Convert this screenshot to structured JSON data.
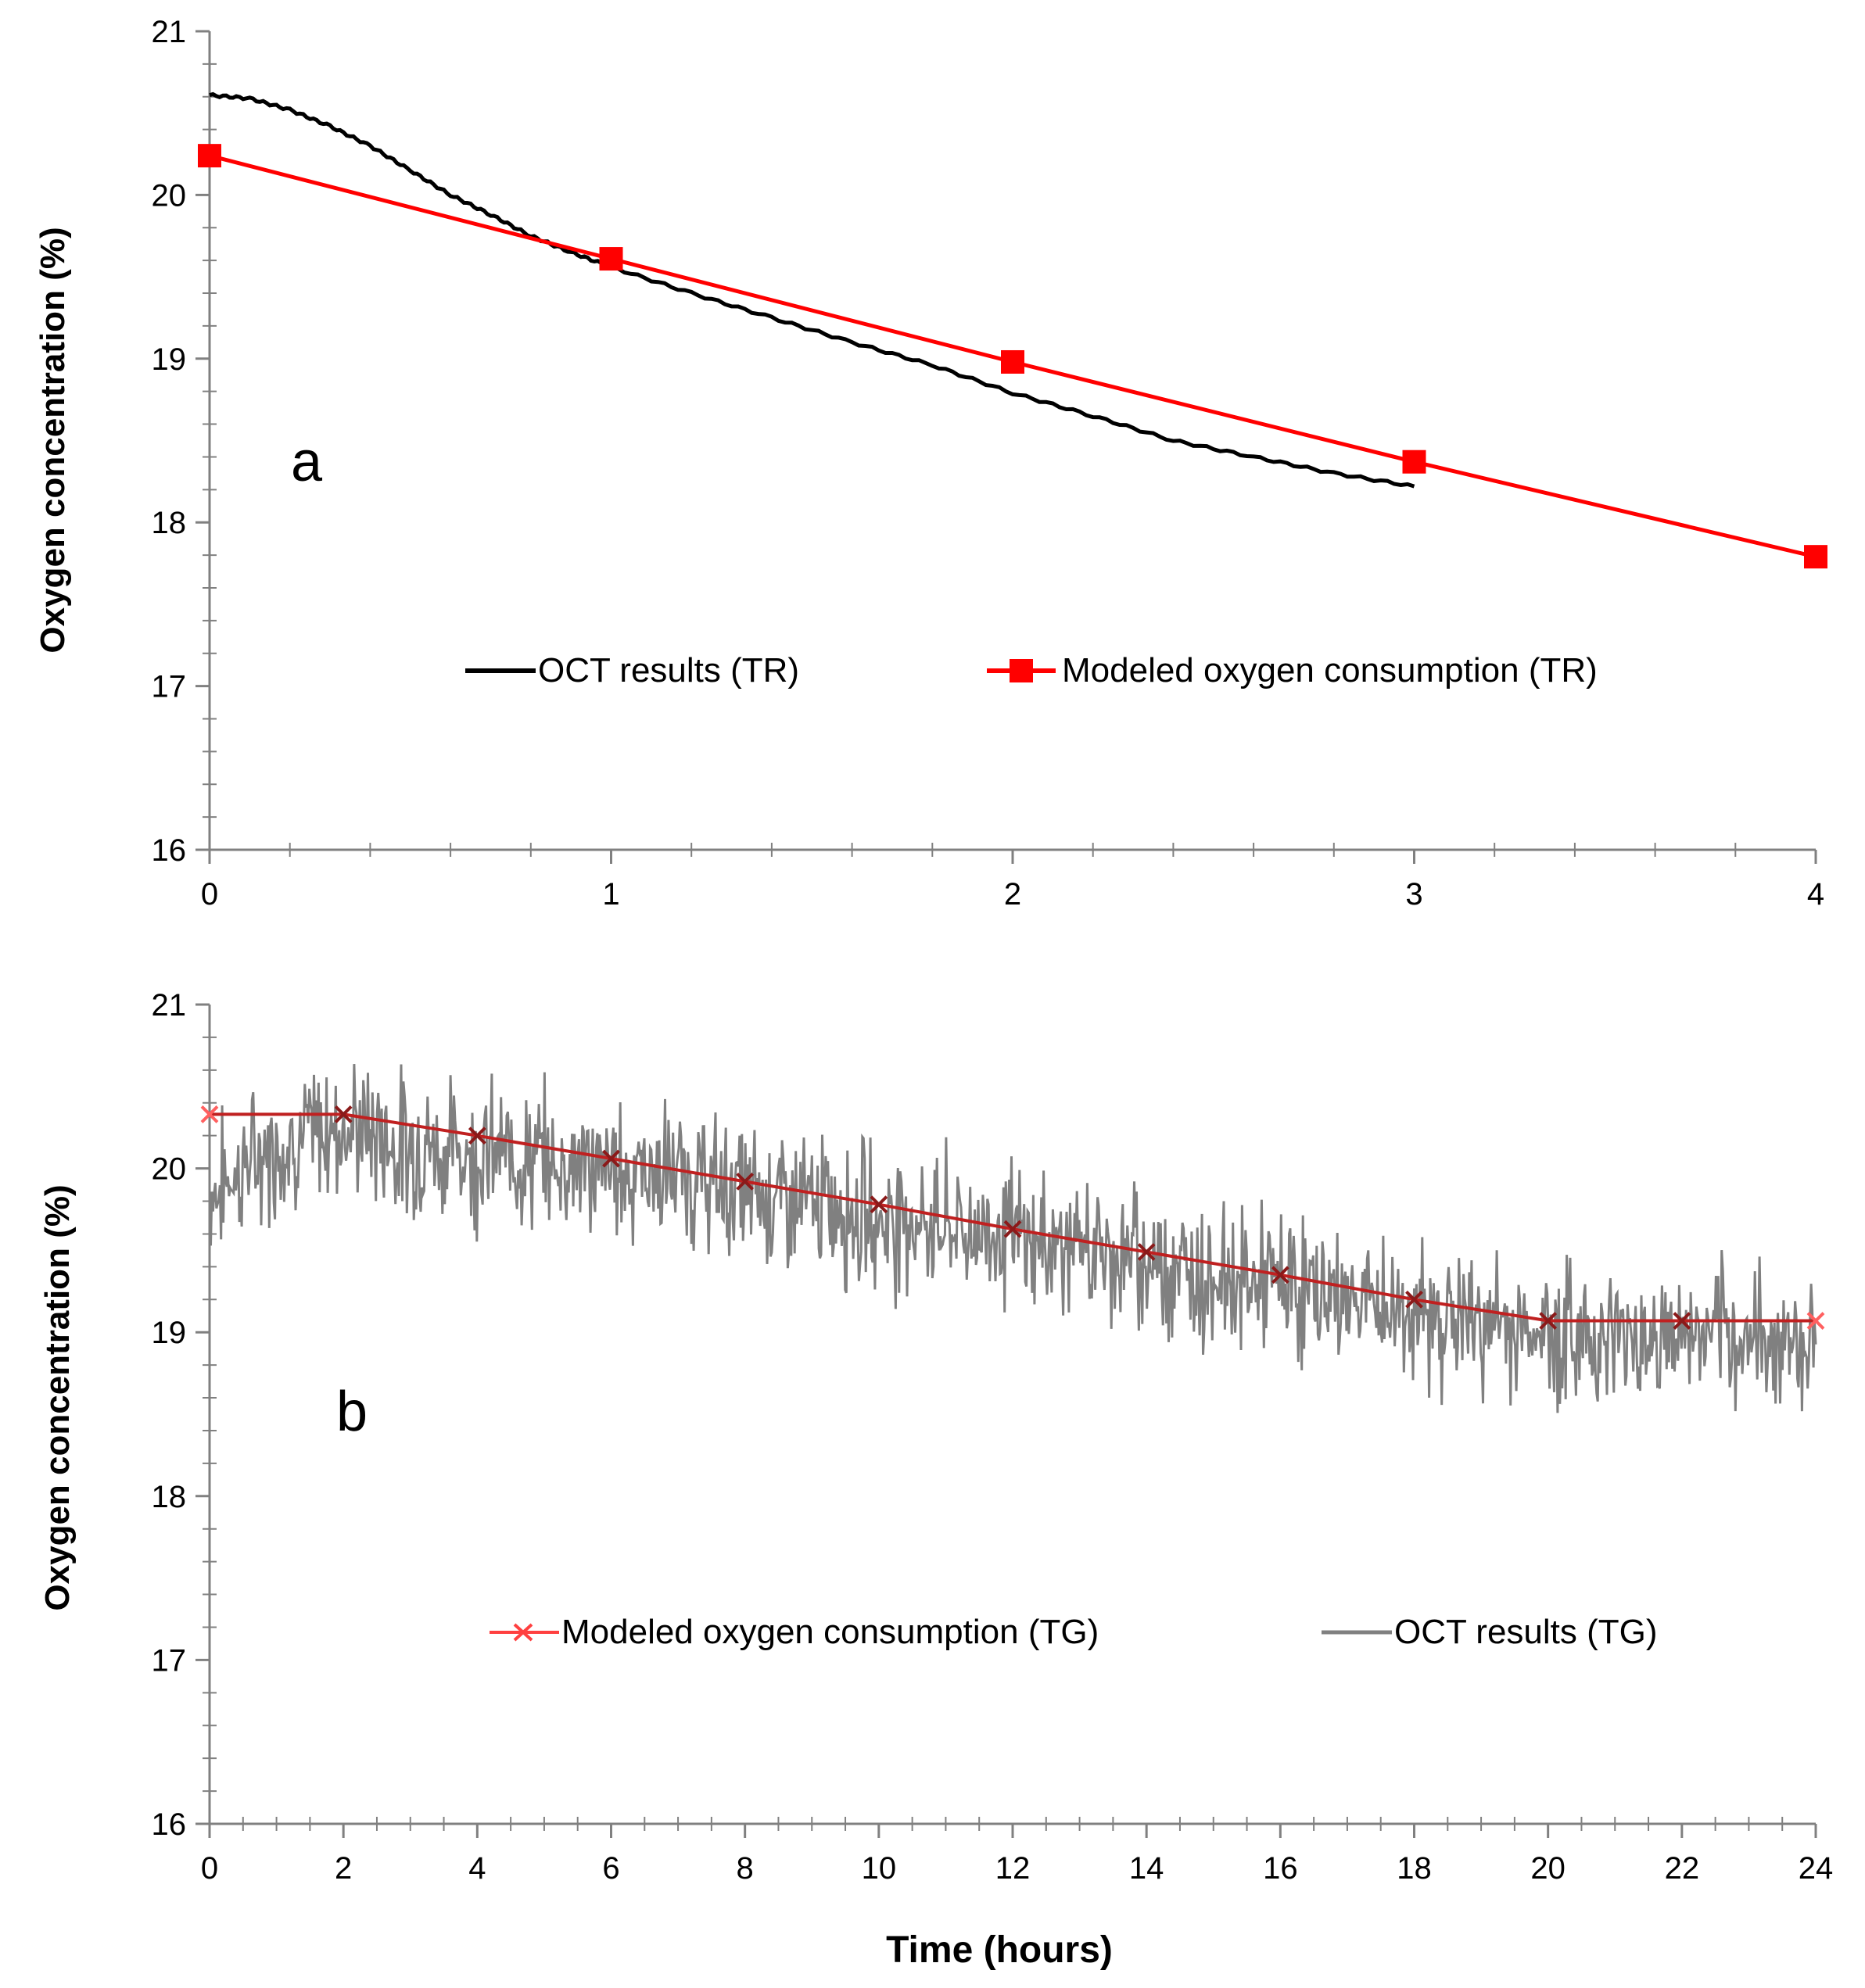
{
  "chart_data": [
    {
      "type": "line",
      "panel_label": "a",
      "title": "",
      "xlabel": "",
      "ylabel": "Oxygen concentration  (%)",
      "xlim": [
        0,
        4
      ],
      "ylim": [
        16,
        21
      ],
      "x_ticks": [
        "0",
        "1",
        "2",
        "3",
        "4"
      ],
      "y_ticks": [
        "16",
        "17",
        "18",
        "19",
        "20",
        "21"
      ],
      "legend_position": "middle",
      "series": [
        {
          "name": "OCT results (TR)",
          "color": "#000000",
          "marker": "none",
          "x": [
            0,
            0.1,
            0.2,
            0.3,
            0.4,
            0.5,
            0.6,
            0.7,
            0.8,
            0.9,
            1.0,
            1.2,
            1.4,
            1.6,
            1.8,
            2.0,
            2.2,
            2.4,
            2.6,
            2.8,
            3.0
          ],
          "y": [
            20.61,
            20.59,
            20.52,
            20.42,
            20.3,
            20.15,
            20.0,
            19.88,
            19.75,
            19.65,
            19.56,
            19.4,
            19.25,
            19.1,
            18.96,
            18.79,
            18.65,
            18.5,
            18.4,
            18.3,
            18.22
          ]
        },
        {
          "name": "Modeled oxygen consumption (TR)",
          "color": "#ff0000",
          "marker": "square",
          "x": [
            0,
            1,
            2,
            3,
            4
          ],
          "y": [
            20.24,
            19.61,
            18.98,
            18.37,
            17.79
          ]
        }
      ]
    },
    {
      "type": "line",
      "panel_label": "b",
      "title": "",
      "xlabel": "Time (hours)",
      "ylabel": "Oxygen concentration  (%)",
      "xlim": [
        0,
        24
      ],
      "ylim": [
        16,
        21
      ],
      "x_ticks": [
        "0",
        "2",
        "4",
        "6",
        "8",
        "10",
        "12",
        "14",
        "16",
        "18",
        "20",
        "22",
        "24"
      ],
      "y_ticks": [
        "16",
        "17",
        "18",
        "19",
        "20",
        "21"
      ],
      "legend_position": "middle",
      "series": [
        {
          "name": "Modeled oxygen consumption (TG)",
          "color": "#ff0000",
          "marker": "x",
          "x": [
            0,
            2,
            4,
            6,
            8,
            10,
            12,
            14,
            16,
            18,
            20,
            22,
            24
          ],
          "y": [
            20.33,
            20.33,
            20.2,
            20.06,
            19.92,
            19.78,
            19.63,
            19.49,
            19.35,
            19.2,
            19.07,
            19.07,
            19.07
          ]
        },
        {
          "name": "OCT results (TG)",
          "color": "#808080",
          "marker": "none",
          "x": [
            0,
            1,
            2,
            3,
            4,
            5,
            6,
            7,
            8,
            9,
            10,
            11,
            12,
            13,
            14,
            15,
            16,
            17,
            18,
            19,
            20,
            21,
            22,
            23,
            24
          ],
          "y": [
            19.85,
            20.15,
            20.25,
            20.15,
            20.1,
            20.05,
            20.0,
            19.95,
            19.85,
            19.8,
            19.7,
            19.65,
            19.6,
            19.5,
            19.45,
            19.35,
            19.3,
            19.2,
            19.1,
            19.05,
            19.0,
            18.98,
            18.97,
            18.96,
            18.95
          ],
          "noise_amplitude": 0.4
        }
      ]
    }
  ]
}
